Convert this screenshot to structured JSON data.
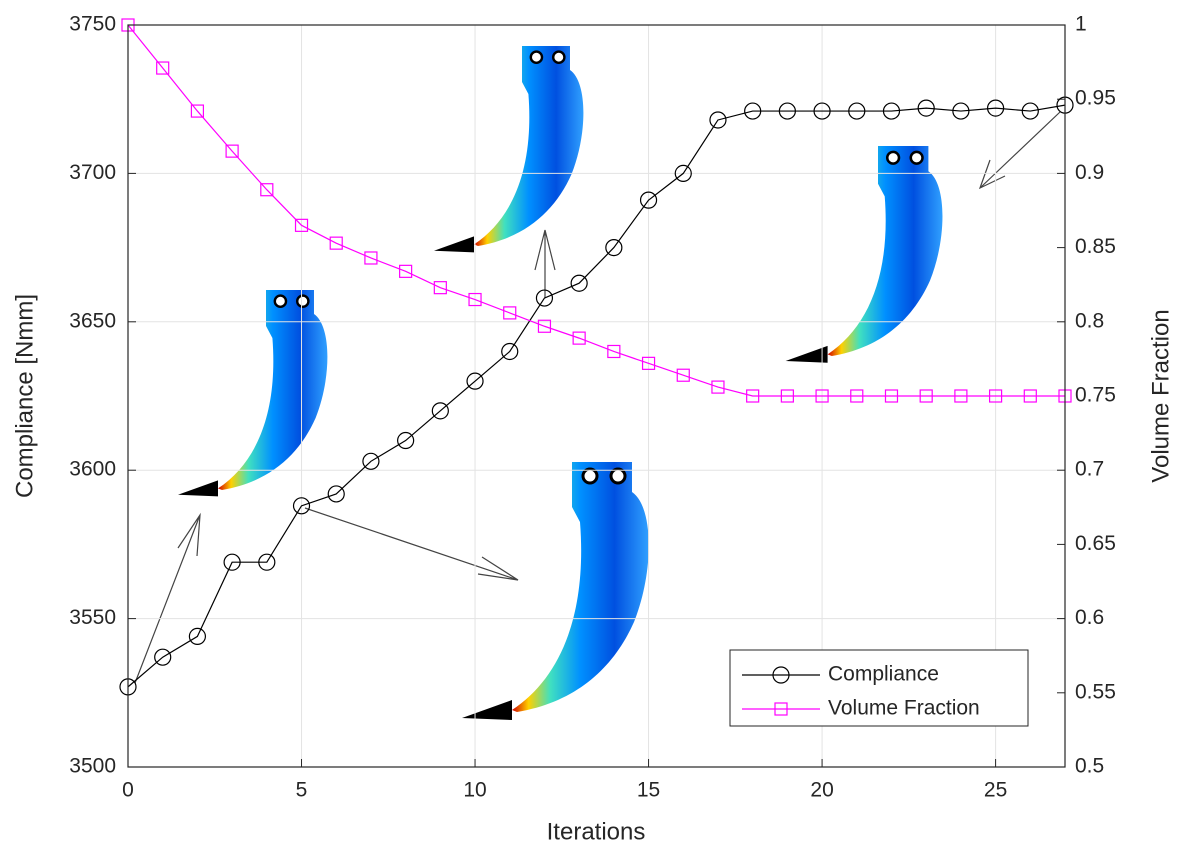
{
  "chart_data": {
    "type": "line",
    "x_label": "Iterations",
    "y_label": "Compliance [Nmm]",
    "y2_label": "Volume Fraction",
    "x": [
      0,
      1,
      2,
      3,
      4,
      5,
      6,
      7,
      8,
      9,
      10,
      11,
      12,
      13,
      14,
      15,
      16,
      17,
      18,
      19,
      20,
      21,
      22,
      23,
      24,
      25,
      26,
      27
    ],
    "series": [
      {
        "name": "Compliance",
        "color": "#000000",
        "marker": "circle",
        "values": [
          3527,
          3537,
          3544,
          3569,
          3569,
          3588,
          3592,
          3603,
          3610,
          3620,
          3630,
          3640,
          3658,
          3663,
          3675,
          3691,
          3700,
          3718,
          3721,
          3721,
          3721,
          3721,
          3721,
          3722,
          3721,
          3722,
          3721,
          3723
        ]
      },
      {
        "name": "Volume Fraction",
        "color": "#ff00ff",
        "marker": "square",
        "axis": "y2",
        "values": [
          1.0,
          0.971,
          0.942,
          0.915,
          0.889,
          0.865,
          0.853,
          0.843,
          0.834,
          0.823,
          0.815,
          0.806,
          0.797,
          0.789,
          0.78,
          0.772,
          0.764,
          0.756,
          0.75,
          0.75,
          0.75,
          0.75,
          0.75,
          0.75,
          0.75,
          0.75,
          0.75,
          0.75
        ]
      }
    ],
    "xlim": [
      0,
      27
    ],
    "xticks": [
      0,
      5,
      10,
      15,
      20,
      25
    ],
    "ylim": [
      3500,
      3750
    ],
    "yticks": [
      3500,
      3550,
      3600,
      3650,
      3700,
      3750
    ],
    "y2lim": [
      0.5,
      1
    ],
    "y2ticks": [
      0.5,
      0.55,
      0.6,
      0.65,
      0.7,
      0.75,
      0.8,
      0.85,
      0.9,
      0.95,
      1
    ],
    "grid": true,
    "legend": "lower right"
  }
}
